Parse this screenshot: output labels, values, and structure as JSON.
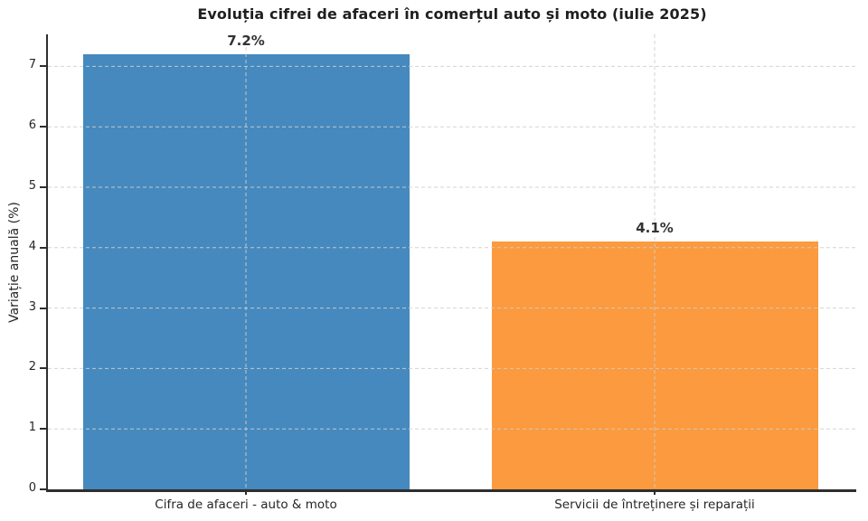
{
  "chart_data": {
    "type": "bar",
    "title": "Evoluția cifrei de afaceri în comerțul auto și moto (iulie 2025)",
    "ylabel": "Variație anuală (%)",
    "xlabel": "",
    "categories": [
      "Cifra de afaceri - auto & moto",
      "Servicii de întreținere și reparații"
    ],
    "values": [
      7.2,
      4.1
    ],
    "value_labels": [
      "7.2%",
      "4.1%"
    ],
    "bar_colors": [
      "#4589be",
      "#fb9a3e"
    ],
    "ylim": [
      0,
      7.53
    ],
    "yticks": [
      0,
      1,
      2,
      3,
      4,
      5,
      6,
      7
    ],
    "grid": {
      "visible": true,
      "style": "dashed",
      "axes": "both",
      "color": "#cfcfcf"
    },
    "legend": "none",
    "text_color": "#262626",
    "spine_color": "#2e2e2e"
  }
}
